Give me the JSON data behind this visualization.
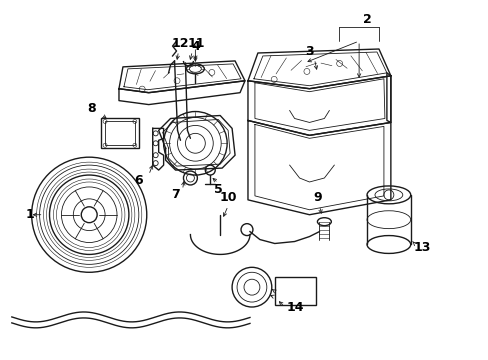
{
  "bg_color": "#ffffff",
  "line_color": "#1a1a1a",
  "label_color": "#000000",
  "figsize": [
    4.89,
    3.6
  ],
  "dpi": 100
}
